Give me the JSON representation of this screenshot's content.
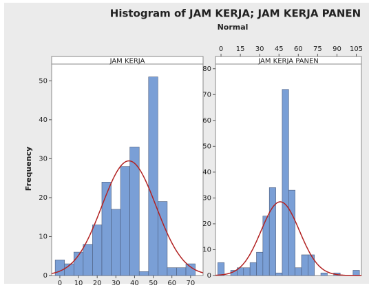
{
  "title": "Histogram of JAM KERJA; JAM KERJA PANEN",
  "subtitle": "Normal",
  "ylabel": "Frequency",
  "chart_data": [
    {
      "type": "histogram",
      "title": "JAM KERJA",
      "bins": [
        -2.5,
        2.5,
        7.5,
        12.5,
        17.5,
        22.5,
        27.5,
        32.5,
        37.5,
        42.5,
        47.5,
        52.5,
        57.5,
        62.5,
        67.5,
        72.5
      ],
      "values": [
        4,
        3,
        6,
        8,
        13,
        24,
        17,
        28,
        33,
        1,
        51,
        19,
        2,
        2,
        3
      ],
      "color": "#7a9fd6",
      "fit_color": "#b22222",
      "fit": {
        "mean": 37,
        "stdev": 14.5
      },
      "xlim": [
        -4.4,
        76.7
      ],
      "xticks": [
        0,
        10,
        20,
        30,
        40,
        50,
        60,
        70
      ],
      "ylim": [
        0,
        54.3
      ],
      "yticks": [
        0,
        10,
        20,
        30,
        40,
        50
      ]
    },
    {
      "type": "histogram",
      "title": "JAM KERJA PANEN",
      "bins": [
        -2.5,
        2.5,
        7.5,
        12.5,
        17.5,
        22.5,
        27.5,
        32.5,
        37.5,
        42.5,
        47.5,
        52.5,
        57.5,
        62.5,
        67.5,
        72.5,
        77.5,
        82.5,
        87.5,
        92.5,
        97.5,
        102.5,
        107.5
      ],
      "values": [
        5,
        0,
        2,
        3,
        3,
        5,
        9,
        23,
        34,
        1,
        72,
        33,
        3,
        8,
        8,
        0,
        1,
        0,
        1,
        0,
        0,
        2
      ],
      "color": "#7a9fd6",
      "fit_color": "#b22222",
      "fit": {
        "mean": 46,
        "stdev": 14.9
      },
      "xlim": [
        -4.3,
        109
      ],
      "xticks": [
        0,
        15,
        30,
        45,
        60,
        75,
        90,
        105
      ],
      "ylim": [
        0,
        81.8
      ],
      "yticks": [
        0,
        10,
        20,
        30,
        40,
        50,
        60,
        70,
        80
      ]
    }
  ]
}
